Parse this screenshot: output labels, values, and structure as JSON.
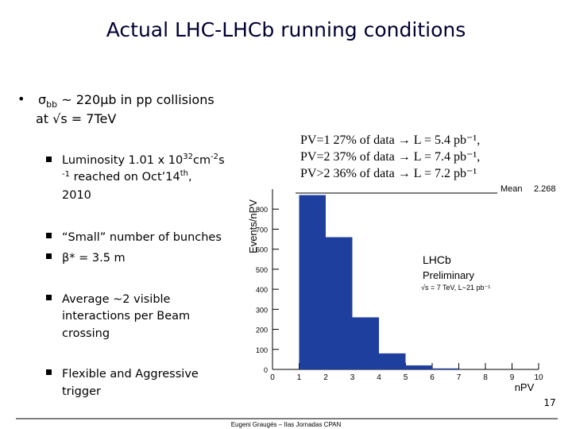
{
  "title": "Actual LHC-LHCb running conditions",
  "bullet": {
    "sigma": "σ",
    "sub": "bb",
    "rest": " ~ 220μb in pp collisions",
    "line2": "at  √s = 7TeV"
  },
  "luminosity": {
    "line1": [
      "Luminosity 1.01 x 10",
      "32",
      "cm",
      "-2",
      "s"
    ],
    "line2": [
      "-1",
      " reached on Oct’14",
      "th",
      ","
    ],
    "line3": "2010"
  },
  "bunches": "“Small” number of bunches",
  "beta": "β* = 3.5 m",
  "average": [
    "Average ~2 visible",
    "interactions per Beam",
    "crossing"
  ],
  "trigger": [
    "Flexible and Aggressive",
    "trigger"
  ],
  "pv_table": [
    "PV=1  27% of data → L = 5.4 pb⁻¹,",
    "PV=2  37% of data → L = 7.4 pb⁻¹,",
    "PV>2  36% of data → L = 7.2 pb⁻¹"
  ],
  "chart_data": {
    "type": "histogram",
    "bins": [
      1,
      2,
      3,
      4,
      5,
      6,
      7
    ],
    "values": [
      870,
      660,
      260,
      80,
      20,
      5
    ],
    "color": "#1f3f9f",
    "xlim": [
      0,
      10
    ],
    "xticks": [
      0,
      1,
      2,
      3,
      4,
      5,
      6,
      7,
      8,
      9,
      10
    ],
    "ylim": [
      0,
      900
    ],
    "yticks": [
      0,
      100,
      200,
      300,
      400,
      500,
      600,
      700,
      800
    ],
    "x_label": "nPV",
    "y_label": "Events/nPV",
    "stats_label": "Mean",
    "stats_value": "2.268",
    "annotations": [
      "LHCb",
      "Preliminary",
      "√s = 7 TeV, L~21 pb⁻¹"
    ]
  },
  "footer": "Eugeni Graugés – IIas Jornadas CPAN",
  "page_number": "17"
}
